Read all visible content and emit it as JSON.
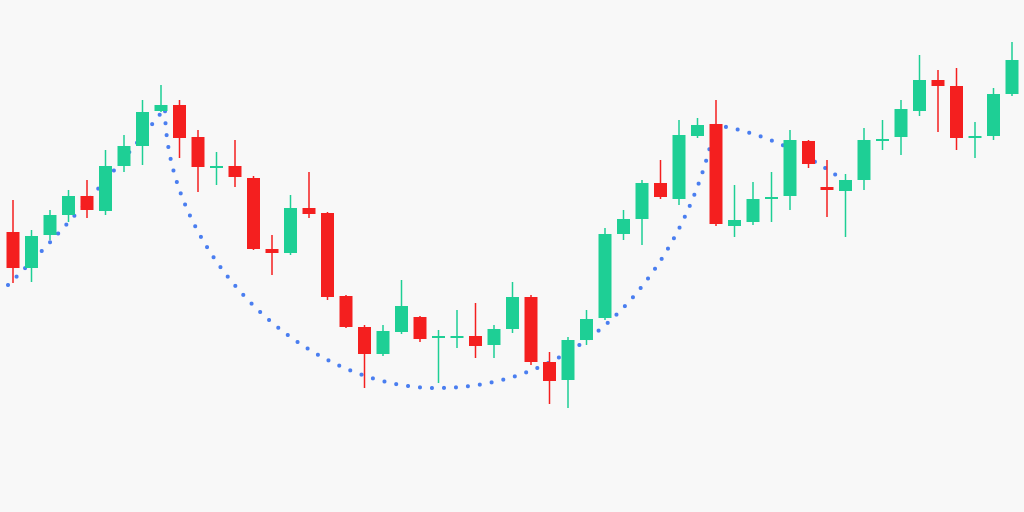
{
  "chart_data": {
    "type": "candlestick",
    "up_color": "#1ecf95",
    "down_color": "#f41f1f",
    "ylim": [
      0,
      512
    ],
    "open": [
      280,
      244,
      277,
      297,
      316,
      301,
      346,
      366,
      401,
      407,
      375,
      344,
      346,
      334,
      263,
      259,
      304,
      299,
      216,
      185,
      158,
      180,
      195,
      174,
      175,
      176,
      167,
      183,
      215,
      150,
      132,
      172,
      194,
      278,
      293,
      329,
      313,
      376,
      388,
      286,
      290,
      313,
      316,
      371,
      325,
      321,
      332,
      371,
      375,
      401,
      432,
      426,
      374,
      376,
      418
    ],
    "high": [
      312,
      282,
      302,
      322,
      332,
      362,
      377,
      412,
      427,
      412,
      382,
      360,
      372,
      336,
      277,
      317,
      340,
      300,
      217,
      187,
      187,
      232,
      196,
      182,
      202,
      209,
      187,
      230,
      217,
      160,
      175,
      202,
      284,
      302,
      332,
      352,
      392,
      394,
      412,
      327,
      330,
      340,
      382,
      372,
      352,
      338,
      384,
      392,
      412,
      457,
      442,
      444,
      390,
      424,
      470
    ],
    "low": [
      229,
      230,
      272,
      290,
      294,
      297,
      340,
      347,
      400,
      354,
      320,
      327,
      325,
      262,
      237,
      257,
      294,
      212,
      184,
      124,
      156,
      178,
      170,
      129,
      164,
      154,
      154,
      179,
      147,
      108,
      104,
      167,
      192,
      272,
      267,
      313,
      307,
      374,
      286,
      275,
      287,
      290,
      302,
      344,
      295,
      275,
      322,
      362,
      357,
      396,
      380,
      362,
      354,
      372,
      416
    ],
    "close": [
      244,
      276,
      297,
      316,
      302,
      346,
      366,
      400,
      407,
      374,
      345,
      346,
      335,
      263,
      259,
      304,
      298,
      215,
      185,
      158,
      181,
      206,
      173,
      176,
      176,
      166,
      183,
      215,
      150,
      131,
      172,
      193,
      278,
      293,
      329,
      315,
      377,
      387,
      288,
      292,
      313,
      315,
      372,
      348,
      322,
      332,
      372,
      373,
      403,
      432,
      426,
      374,
      376,
      418,
      452
    ]
  }
}
